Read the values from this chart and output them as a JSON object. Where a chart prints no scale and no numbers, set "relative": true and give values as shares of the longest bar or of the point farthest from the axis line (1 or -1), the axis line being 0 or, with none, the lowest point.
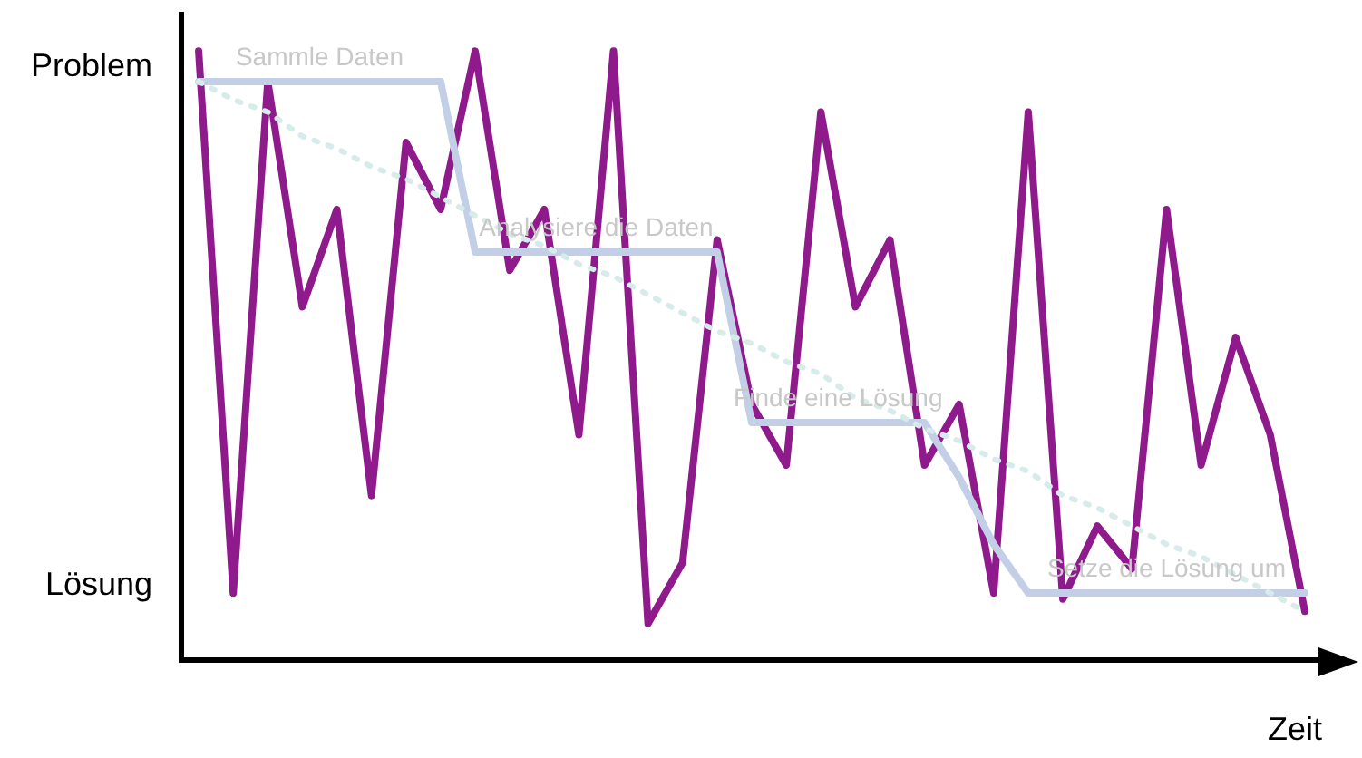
{
  "chart_data": {
    "type": "line",
    "xlabel": "Zeit",
    "relative": true,
    "categories": [
      null,
      null,
      null,
      null,
      null,
      null,
      null,
      null,
      null,
      null,
      null,
      null,
      null,
      null,
      null,
      null,
      null,
      null,
      null,
      null,
      null,
      null,
      null,
      null,
      null,
      null,
      null,
      null,
      null,
      null,
      null,
      null,
      null
    ],
    "grid": false,
    "legend": false,
    "marker": "none",
    "series": [
      {
        "color": "#d6ebea",
        "line_style": "dotted",
        "values": [
          0.95,
          0.92,
          0.9,
          0.86,
          0.84,
          0.81,
          0.79,
          0.76,
          0.73,
          0.7,
          0.68,
          0.65,
          0.63,
          0.6,
          0.57,
          0.54,
          0.52,
          0.49,
          0.47,
          0.43,
          0.41,
          0.38,
          0.36,
          0.33,
          0.31,
          0.27,
          0.25,
          0.22,
          0.19,
          0.17,
          0.14,
          0.11,
          0.08
        ]
      },
      {
        "color": "#c3cfe6",
        "line_style": "solid",
        "values": [
          0.95,
          0.95,
          0.95,
          0.95,
          0.95,
          0.95,
          0.95,
          0.95,
          0.67,
          0.67,
          0.67,
          0.67,
          0.67,
          0.67,
          0.67,
          0.67,
          0.39,
          0.39,
          0.39,
          0.39,
          0.39,
          0.39,
          0.3,
          0.19,
          0.11,
          0.11,
          0.11,
          0.11,
          0.11,
          0.11,
          0.11,
          0.11,
          0.11
        ]
      },
      {
        "color": "#8e1a8c",
        "line_style": "solid",
        "values": [
          1,
          0.11,
          0.95,
          0.58,
          0.74,
          0.27,
          0.85,
          0.74,
          1,
          0.64,
          0.74,
          0.37,
          1,
          0.06,
          0.16,
          0.69,
          0.42,
          0.32,
          0.9,
          0.58,
          0.69,
          0.32,
          0.42,
          0.11,
          0.9,
          0.1,
          0.22,
          0.15,
          0.74,
          0.32,
          0.53,
          0.37,
          0.08
        ]
      }
    ],
    "annotations": [
      "Sammle Daten",
      "Analysiere die Daten",
      "Finde eine Lösung",
      "Setze die Lösung um",
      "Problem",
      "Lösung"
    ]
  }
}
